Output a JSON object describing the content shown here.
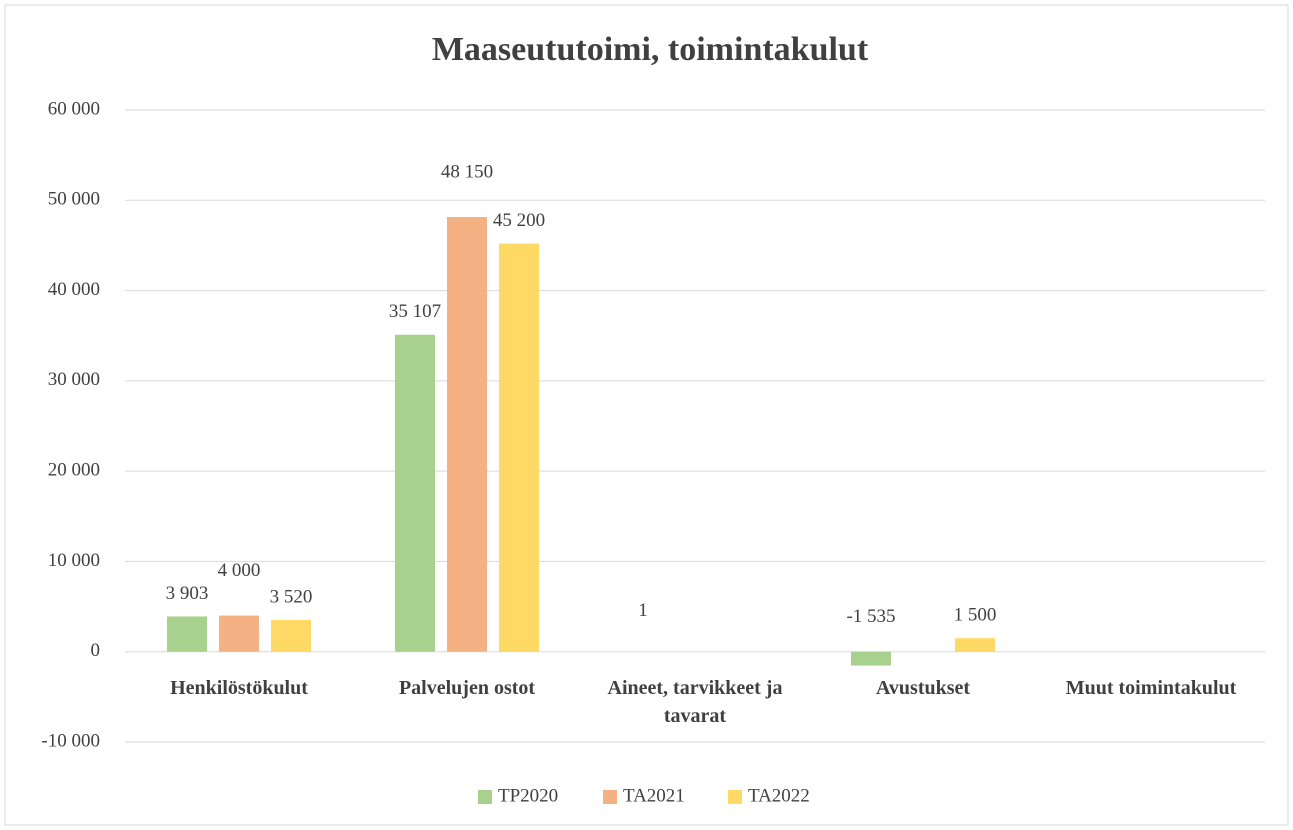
{
  "chart_data": {
    "type": "bar",
    "title": "Maaseututoimi, toimintakulut",
    "categories": [
      "Henkilöstökulut",
      "Palvelujen ostot",
      "Aineet, tarvikkeet ja tavarat",
      "Avustukset",
      "Muut toimintakulut"
    ],
    "series": [
      {
        "name": "TP2020",
        "color": "#a9d18e",
        "values": [
          3903,
          35107,
          1,
          -1535,
          null
        ],
        "value_labels": [
          "3 903",
          "35 107",
          "1",
          "-1 535",
          null
        ]
      },
      {
        "name": "TA2021",
        "color": "#f4b183",
        "values": [
          4000,
          48150,
          null,
          null,
          null
        ],
        "value_labels": [
          "4 000",
          "48 150",
          null,
          null,
          null
        ]
      },
      {
        "name": "TA2022",
        "color": "#ffd966",
        "values": [
          3520,
          45200,
          null,
          1500,
          null
        ],
        "value_labels": [
          "3 520",
          "45 200",
          null,
          "1 500",
          null
        ]
      }
    ],
    "ylim": [
      -10000,
      60000
    ],
    "yticks": [
      {
        "value": -10000,
        "label": "-10 000"
      },
      0,
      {
        "value": 10000,
        "label": "10 000"
      },
      {
        "value": 20000,
        "label": "20 000"
      },
      {
        "value": 30000,
        "label": "30 000"
      },
      {
        "value": 40000,
        "label": "40 000"
      },
      {
        "value": 50000,
        "label": "50 000"
      },
      {
        "value": 60000,
        "label": "60 000"
      }
    ],
    "grid": true,
    "legend": "bottom"
  }
}
